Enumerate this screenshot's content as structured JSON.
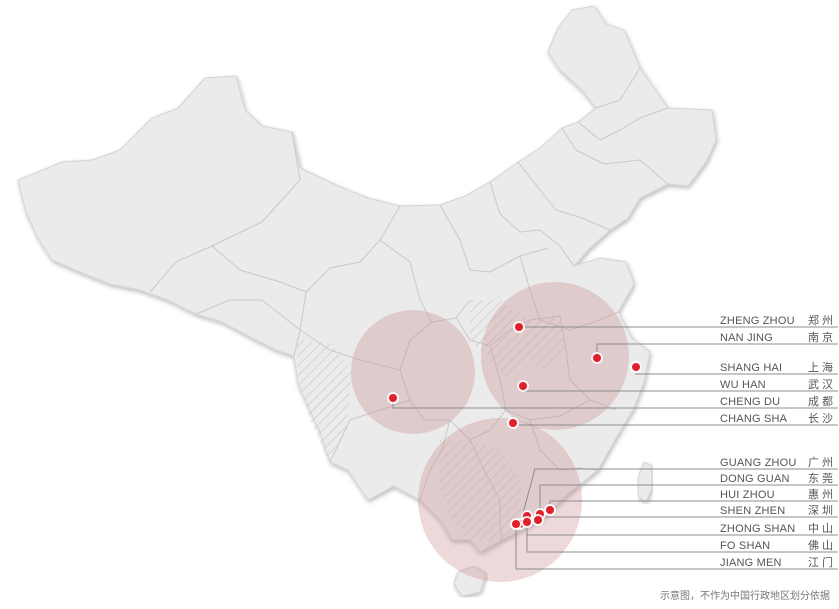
{
  "colors": {
    "land": "#ebebeb",
    "border": "#c9c9c9",
    "region": "#c98b8b",
    "dot": "#e0202a",
    "leader": "#8c8c8c"
  },
  "cities": [
    {
      "id": "zhengzhou",
      "en": "ZHENG ZHOU",
      "zh": "郑州"
    },
    {
      "id": "nanjing",
      "en": "NAN JING",
      "zh": "南京"
    },
    {
      "id": "shanghai",
      "en": "SHANG HAI",
      "zh": "上海"
    },
    {
      "id": "wuhan",
      "en": "WU HAN",
      "zh": "武汉"
    },
    {
      "id": "chengdu",
      "en": "CHENG DU",
      "zh": "成都"
    },
    {
      "id": "changsha",
      "en": "CHANG SHA",
      "zh": "长沙"
    },
    {
      "id": "guangzhou",
      "en": "GUANG ZHOU",
      "zh": "广州"
    },
    {
      "id": "dongguan",
      "en": "DONG GUAN",
      "zh": "东莞"
    },
    {
      "id": "huizhou",
      "en": "HUI ZHOU",
      "zh": "惠州"
    },
    {
      "id": "shenzhen",
      "en": "SHEN ZHEN",
      "zh": "深圳"
    },
    {
      "id": "zhongshan",
      "en": "ZHONG SHAN",
      "zh": "中山"
    },
    {
      "id": "foshan",
      "en": "FO SHAN",
      "zh": "佛山"
    },
    {
      "id": "jiangmen",
      "en": "JIANG MEN",
      "zh": "江门"
    }
  ],
  "disclaimer": "示意图，不作为中国行政地区划分依据"
}
